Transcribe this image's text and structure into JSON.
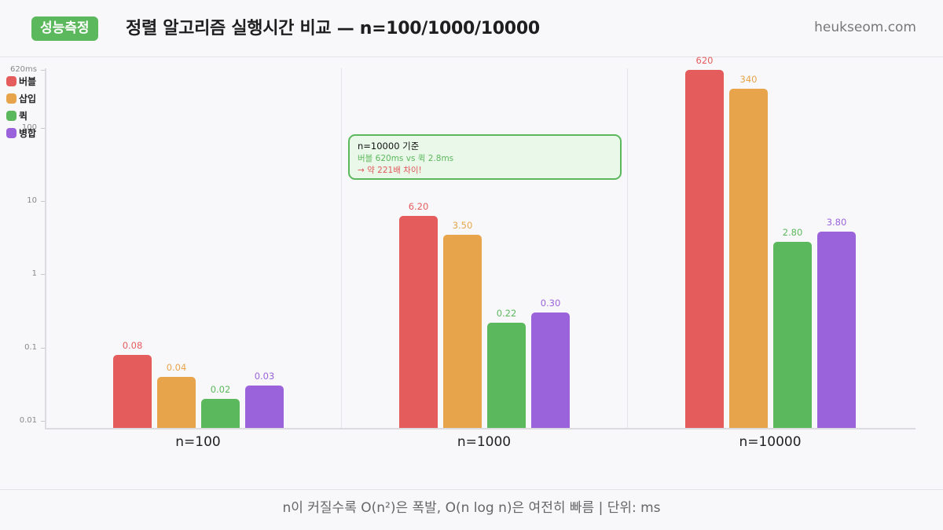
{
  "header": {
    "badge": "성능측정",
    "title": "정렬 알고리즘 실행시간 비교 — n=100/1000/10000",
    "site": "heukseom.com"
  },
  "legend": [
    {
      "label": "버블",
      "color": "#e55c5c"
    },
    {
      "label": "삽입",
      "color": "#e8a44a"
    },
    {
      "label": "퀵",
      "color": "#5cb85c"
    },
    {
      "label": "병합",
      "color": "#9b63db"
    }
  ],
  "y_ticks": [
    {
      "label": "620ms",
      "value": 620
    },
    {
      "label": "100",
      "value": 100
    },
    {
      "label": "10",
      "value": 10
    },
    {
      "label": "1",
      "value": 1
    },
    {
      "label": "0.1",
      "value": 0.1
    },
    {
      "label": "0.01",
      "value": 0.01
    }
  ],
  "groups": [
    {
      "label": "n=100",
      "values": [
        "0.08",
        "0.04",
        "0.02",
        "0.03"
      ]
    },
    {
      "label": "n=1000",
      "values": [
        "6.20",
        "3.50",
        "0.22",
        "0.30"
      ]
    },
    {
      "label": "n=10000",
      "values": [
        "620",
        "340",
        "2.80",
        "3.80"
      ]
    }
  ],
  "callout": {
    "title": "n=10000 기준",
    "line2": "버블 620ms vs 퀵 2.8ms",
    "line3": "→ 약 221배 차이!"
  },
  "footer": {
    "caption": "n이 커질수록 O(n²)은 폭발, O(n log n)은 여전히 빠름 | 단위: ms"
  },
  "chart_data": {
    "type": "bar",
    "title": "정렬 알고리즘 실행시간 비교 — n=100/1000/10000",
    "categories": [
      "n=100",
      "n=1000",
      "n=10000"
    ],
    "series": [
      {
        "name": "버블",
        "color": "#e55c5c",
        "values": [
          0.08,
          6.2,
          620
        ]
      },
      {
        "name": "삽입",
        "color": "#e8a44a",
        "values": [
          0.04,
          3.5,
          340
        ]
      },
      {
        "name": "퀵",
        "color": "#5cb85c",
        "values": [
          0.02,
          0.22,
          2.8
        ]
      },
      {
        "name": "병합",
        "color": "#9b63db",
        "values": [
          0.03,
          0.3,
          3.8
        ]
      }
    ],
    "xlabel": "",
    "ylabel": "ms",
    "yscale": "log",
    "ylim": [
      0.01,
      620
    ],
    "yticks": [
      0.01,
      0.1,
      1,
      10,
      100,
      620
    ],
    "grid": false,
    "legend_position": "top-left",
    "annotations": [
      "n=10000 기준",
      "버블 620ms vs 퀵 2.8ms",
      "→ 약 221배 차이!"
    ]
  }
}
